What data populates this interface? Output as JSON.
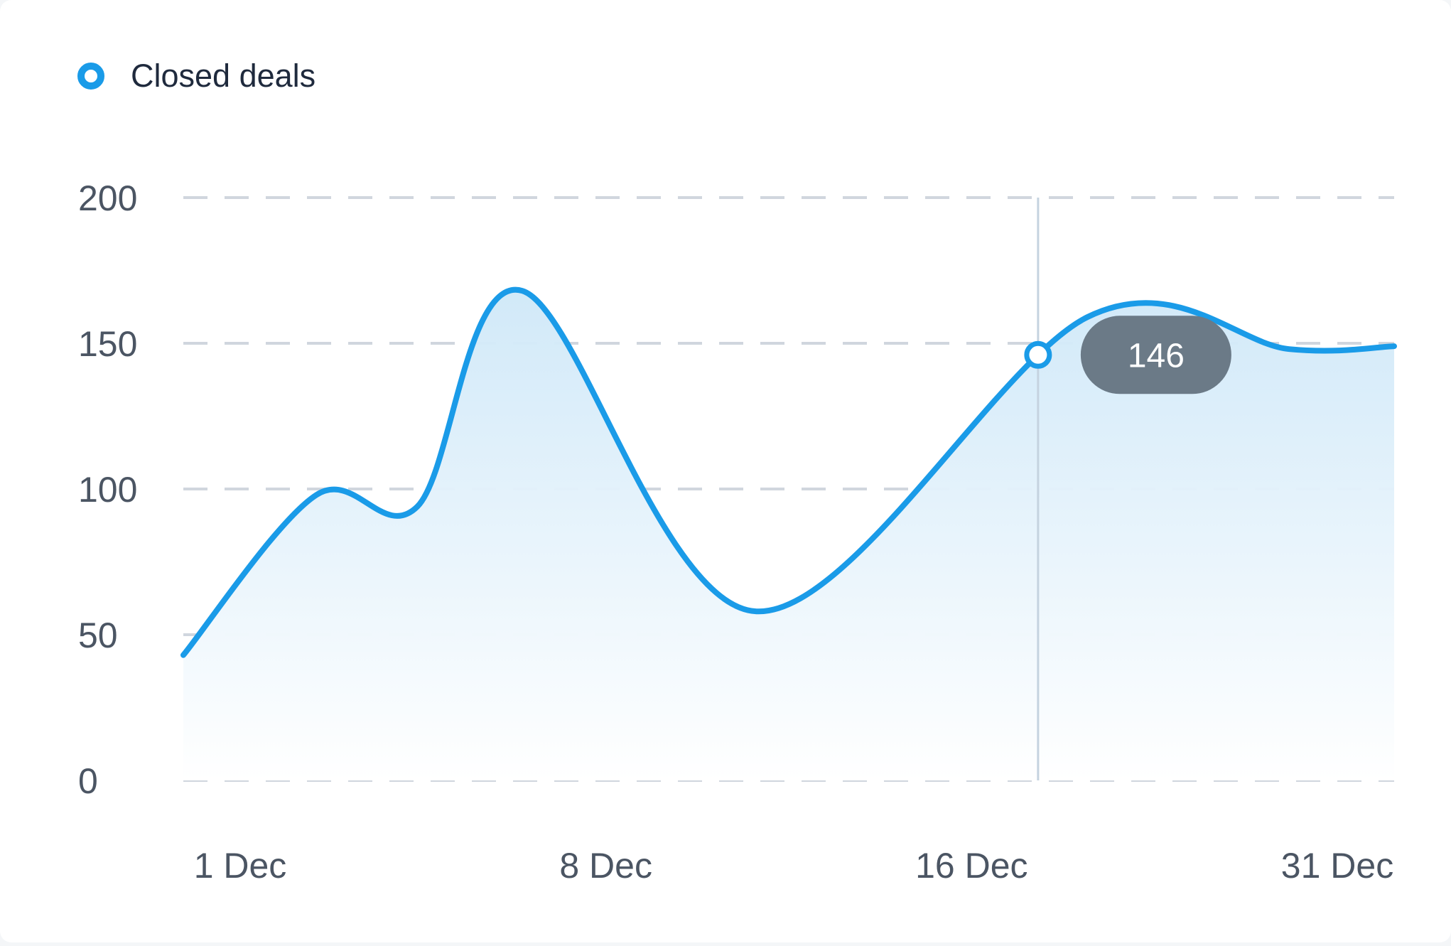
{
  "chart_data": {
    "type": "area",
    "legend": {
      "label": "Closed deals",
      "placement": "top-left"
    },
    "x_ticks": [
      "1 Dec",
      "8 Dec",
      "16 Dec",
      "31 Dec"
    ],
    "y_ticks": [
      "200",
      "150",
      "100",
      "50",
      "0"
    ],
    "ylim": [
      0,
      200
    ],
    "grid": true,
    "series": [
      {
        "name": "Closed deals",
        "color": "#1a9be8",
        "points": [
          {
            "x": 0,
            "y": 43
          },
          {
            "x": 3.3,
            "y": 98
          },
          {
            "x": 5.8,
            "y": 94
          },
          {
            "x": 8.4,
            "y": 168
          },
          {
            "x": 14.2,
            "y": 58
          },
          {
            "x": 22.4,
            "y": 159
          },
          {
            "x": 27.4,
            "y": 148
          },
          {
            "x": 30,
            "y": 149
          }
        ]
      }
    ],
    "highlight": {
      "value": "146",
      "series": "Closed deals"
    },
    "colors": {
      "line": "#1a9be8",
      "fill_top": "#cfe8f8",
      "fill_bottom": "#ffffff",
      "tooltip_bg": "#6b7a87",
      "crosshair": "#c5d3e0"
    }
  }
}
